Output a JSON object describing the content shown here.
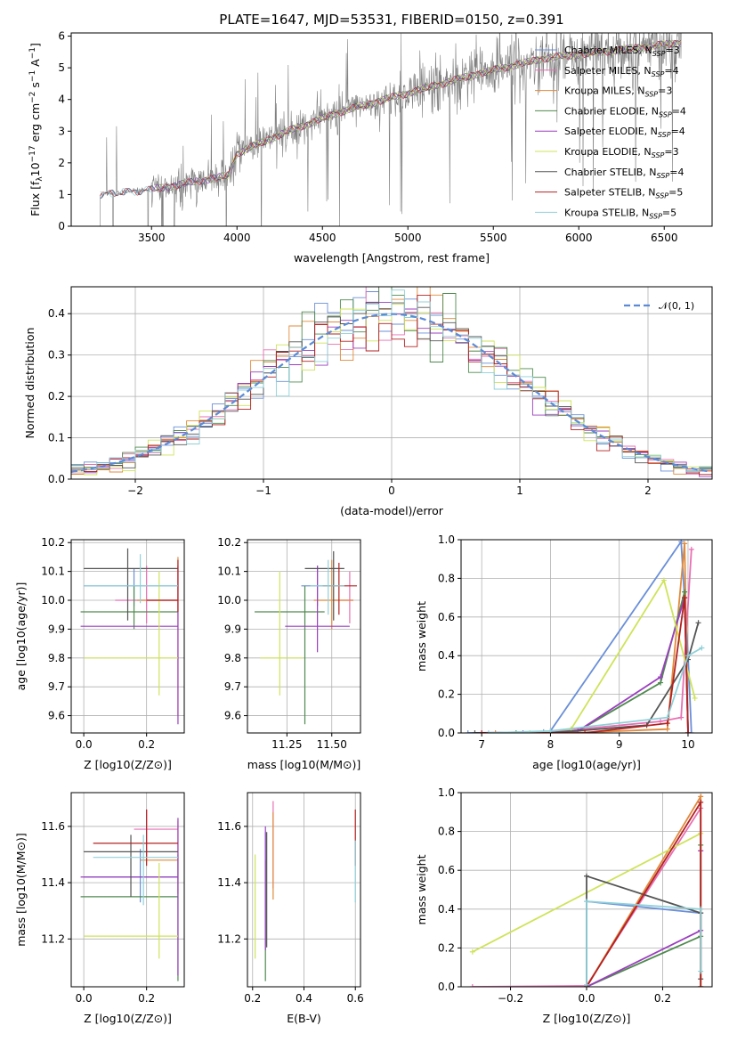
{
  "colors": {
    "ch_miles": "#6a8fd8",
    "sa_miles": "#e86fb3",
    "kr_miles": "#e08a3c",
    "ch_elodie": "#4f8a4f",
    "sa_elodie": "#9b3fbf",
    "kr_elodie": "#cfe35a",
    "ch_stelib": "#555555",
    "sa_stelib": "#b22222",
    "kr_stelib": "#8fd0d8",
    "spectrum": "#808080",
    "normal": "#5b8bd6"
  },
  "chart_data": [
    {
      "id": "spectrum",
      "type": "line",
      "title": "PLATE=1647, MJD=53531, FIBERID=0150, z=0.391",
      "xlabel": "wavelength [Angstrom, rest frame]",
      "ylabel_parts": [
        "Flux [f",
        "λ",
        "10",
        "−17",
        " erg cm",
        "−2",
        " s",
        "−1",
        " A",
        "−1",
        "]"
      ],
      "xlim": [
        3030,
        6780
      ],
      "ylim": [
        0,
        6.1
      ],
      "xticks": [
        "3500",
        "4000",
        "4500",
        "5000",
        "5500",
        "6000",
        "6500"
      ],
      "yticks": [
        "0",
        "1",
        "2",
        "3",
        "4",
        "5",
        "6"
      ],
      "grid": false,
      "legend": "top-right",
      "continuum": [
        [
          3200,
          1.0
        ],
        [
          3500,
          1.15
        ],
        [
          3700,
          1.35
        ],
        [
          3950,
          1.6
        ],
        [
          4000,
          2.3
        ],
        [
          4300,
          3.0
        ],
        [
          4600,
          3.6
        ],
        [
          5000,
          4.2
        ],
        [
          5400,
          4.8
        ],
        [
          5800,
          5.3
        ],
        [
          6300,
          5.6
        ],
        [
          6600,
          5.8
        ]
      ],
      "series": [
        {
          "key": "ch_miles",
          "label": "Chabrier MILES, N",
          "sub": "SSP",
          "suffix": "=3"
        },
        {
          "key": "sa_miles",
          "label": "Salpeter MILES, N",
          "sub": "SSP",
          "suffix": "=4"
        },
        {
          "key": "kr_miles",
          "label": "Kroupa MILES, N",
          "sub": "SSP",
          "suffix": "=3"
        },
        {
          "key": "ch_elodie",
          "label": "Chabrier ELODIE, N",
          "sub": "SSP",
          "suffix": "=4"
        },
        {
          "key": "sa_elodie",
          "label": "Salpeter ELODIE, N",
          "sub": "SSP",
          "suffix": "=4"
        },
        {
          "key": "kr_elodie",
          "label": "Kroupa ELODIE, N",
          "sub": "SSP",
          "suffix": "=3"
        },
        {
          "key": "ch_stelib",
          "label": "Chabrier STELIB, N",
          "sub": "SSP",
          "suffix": "=4"
        },
        {
          "key": "sa_stelib",
          "label": "Salpeter STELIB, N",
          "sub": "SSP",
          "suffix": "=5"
        },
        {
          "key": "kr_stelib",
          "label": "Kroupa STELIB, N",
          "sub": "SSP",
          "suffix": "=5"
        }
      ]
    },
    {
      "id": "residuals",
      "type": "step",
      "xlabel": "(data-model)/error",
      "ylabel": "Normed distribution",
      "xlim": [
        -2.5,
        2.5
      ],
      "ylim": [
        0,
        0.465
      ],
      "xticks": [
        "−2",
        "−1",
        "0",
        "1",
        "2"
      ],
      "yticks": [
        "0.0",
        "0.1",
        "0.2",
        "0.3",
        "0.4"
      ],
      "grid": true,
      "legend": "top-right",
      "normal_label": "𝒩(0, 1)",
      "bin_width": 0.1
    },
    {
      "id": "age_vs_Z",
      "type": "errorbar",
      "xlabel": "Z [log10(Z/Z⊙)]",
      "ylabel": "age  [log10(age/yr)]",
      "xlim": [
        -0.04,
        0.32
      ],
      "ylim": [
        9.54,
        10.21
      ],
      "xticks": [
        "0.0",
        "0.2"
      ],
      "yticks": [
        "9.6",
        "9.7",
        "9.8",
        "9.9",
        "10.0",
        "10.1",
        "10.2"
      ],
      "grid": true,
      "points": [
        {
          "key": "ch_miles",
          "x": 0.16,
          "xe": [
            0.0,
            0.3
          ],
          "y": 10.05,
          "ye": [
            9.98,
            10.11
          ]
        },
        {
          "key": "sa_miles",
          "x": 0.2,
          "xe": [
            0.1,
            0.3
          ],
          "y": 10.0,
          "ye": [
            9.92,
            10.12
          ]
        },
        {
          "key": "kr_miles",
          "x": 0.3,
          "xe": [
            0.17,
            0.3
          ],
          "y": 10.0,
          "ye": [
            9.6,
            10.15
          ]
        },
        {
          "key": "ch_elodie",
          "x": 0.16,
          "xe": [
            -0.01,
            0.3
          ],
          "y": 9.96,
          "ye": [
            9.9,
            10.05
          ]
        },
        {
          "key": "sa_elodie",
          "x": 0.3,
          "xe": [
            -0.01,
            0.3
          ],
          "y": 9.91,
          "ye": [
            9.57,
            10.12
          ]
        },
        {
          "key": "kr_elodie",
          "x": 0.24,
          "xe": [
            0.0,
            0.3
          ],
          "y": 9.8,
          "ye": [
            9.67,
            10.1
          ]
        },
        {
          "key": "ch_stelib",
          "x": 0.14,
          "xe": [
            0.0,
            0.3
          ],
          "y": 10.11,
          "ye": [
            9.93,
            10.18
          ]
        },
        {
          "key": "sa_stelib",
          "x": 0.3,
          "xe": [
            0.2,
            0.3
          ],
          "y": 10.0,
          "ye": [
            9.96,
            10.14
          ]
        },
        {
          "key": "kr_stelib",
          "x": 0.18,
          "xe": [
            0.0,
            0.3
          ],
          "y": 10.05,
          "ye": [
            9.99,
            10.16
          ]
        }
      ]
    },
    {
      "id": "age_vs_mass",
      "type": "errorbar",
      "xlabel": "mass [log10(M/M⊙)]",
      "ylabel": "",
      "xlim": [
        11.03,
        11.66
      ],
      "ylim": [
        9.54,
        10.21
      ],
      "xticks": [
        "11.25",
        "11.50"
      ],
      "yticks": [
        "9.6",
        "9.7",
        "9.8",
        "9.9",
        "10.0",
        "10.1",
        "10.2"
      ],
      "grid": true,
      "points": [
        {
          "key": "ch_miles",
          "x": 11.42,
          "xe": [
            11.33,
            11.51
          ],
          "y": 10.05,
          "ye": [
            9.98,
            10.12
          ]
        },
        {
          "key": "sa_miles",
          "x": 11.6,
          "xe": [
            11.5,
            11.62
          ],
          "y": 10.0,
          "ye": [
            9.92,
            10.1
          ]
        },
        {
          "key": "kr_miles",
          "x": 11.5,
          "xe": [
            11.4,
            11.62
          ],
          "y": 10.0,
          "ye": [
            9.9,
            10.14
          ]
        },
        {
          "key": "ch_elodie",
          "x": 11.35,
          "xe": [
            11.07,
            11.46
          ],
          "y": 9.96,
          "ye": [
            9.57,
            10.05
          ]
        },
        {
          "key": "sa_elodie",
          "x": 11.42,
          "xe": [
            11.24,
            11.6
          ],
          "y": 9.91,
          "ye": [
            9.82,
            10.12
          ]
        },
        {
          "key": "kr_elodie",
          "x": 11.21,
          "xe": [
            11.1,
            11.34
          ],
          "y": 9.8,
          "ye": [
            9.67,
            10.1
          ]
        },
        {
          "key": "ch_stelib",
          "x": 11.51,
          "xe": [
            11.35,
            11.57
          ],
          "y": 10.11,
          "ye": [
            9.93,
            10.17
          ]
        },
        {
          "key": "sa_stelib",
          "x": 11.54,
          "xe": [
            11.45,
            11.64
          ],
          "y": 10.05,
          "ye": [
            9.95,
            10.13
          ]
        },
        {
          "key": "kr_stelib",
          "x": 11.48,
          "xe": [
            11.38,
            11.57
          ],
          "y": 10.05,
          "ye": [
            9.95,
            10.14
          ]
        }
      ]
    },
    {
      "id": "massweight_vs_age",
      "type": "line",
      "xlabel": "age  [log10(age/yr)]",
      "ylabel": "mass weight",
      "xlim": [
        6.7,
        10.35
      ],
      "ylim": [
        0,
        1.0
      ],
      "xticks": [
        "7",
        "8",
        "9",
        "10"
      ],
      "yticks": [
        "0.0",
        "0.2",
        "0.4",
        "0.6",
        "0.8",
        "1.0"
      ],
      "grid": true,
      "series": [
        {
          "key": "ch_miles",
          "x": [
            6.8,
            7.9,
            8.0,
            9.9,
            10.0,
            10.05
          ],
          "y": [
            0.0,
            0.005,
            0.01,
            0.99,
            0.4,
            0.0
          ]
        },
        {
          "key": "sa_miles",
          "x": [
            7.0,
            8.0,
            9.6,
            9.9,
            10.05
          ],
          "y": [
            0.0,
            0.005,
            0.06,
            0.08,
            0.95
          ]
        },
        {
          "key": "kr_miles",
          "x": [
            7.2,
            8.3,
            9.7,
            9.95,
            10.0
          ],
          "y": [
            0.0,
            0.0,
            0.02,
            0.98,
            0.0
          ]
        },
        {
          "key": "ch_elodie",
          "x": [
            7.5,
            8.4,
            9.6,
            9.95,
            10.0
          ],
          "y": [
            0.0,
            0.01,
            0.26,
            0.73,
            0.0
          ]
        },
        {
          "key": "sa_elodie",
          "x": [
            7.6,
            8.4,
            9.6,
            9.95,
            10.0
          ],
          "y": [
            0.0,
            0.01,
            0.29,
            0.7,
            0.0
          ]
        },
        {
          "key": "kr_elodie",
          "x": [
            7.7,
            8.3,
            9.65,
            10.1
          ],
          "y": [
            0.0,
            0.02,
            0.79,
            0.18
          ]
        },
        {
          "key": "ch_stelib",
          "x": [
            6.9,
            8.0,
            9.4,
            10.0,
            10.15
          ],
          "y": [
            0.0,
            0.0,
            0.04,
            0.38,
            0.57
          ]
        },
        {
          "key": "sa_stelib",
          "x": [
            7.0,
            8.5,
            9.7,
            9.95,
            10.0
          ],
          "y": [
            0.0,
            0.0,
            0.05,
            0.7,
            0.0
          ]
        },
        {
          "key": "kr_stelib",
          "x": [
            7.1,
            8.0,
            9.7,
            10.0,
            10.2
          ],
          "y": [
            0.0,
            0.01,
            0.08,
            0.4,
            0.44
          ]
        }
      ]
    },
    {
      "id": "mass_vs_Z",
      "type": "errorbar",
      "xlabel": "Z [log10(Z/Z⊙)]",
      "ylabel": "mass [log10(M/M⊙)]",
      "xlim": [
        -0.04,
        0.32
      ],
      "ylim": [
        11.03,
        11.72
      ],
      "xticks": [
        "0.0",
        "0.2"
      ],
      "yticks": [
        "11.2",
        "11.4",
        "11.6"
      ],
      "grid": true,
      "points": [
        {
          "key": "ch_miles",
          "x": 0.18,
          "xe": [
            0.0,
            0.3
          ],
          "y": 11.42,
          "ye": [
            11.33,
            11.52
          ]
        },
        {
          "key": "sa_miles",
          "x": 0.2,
          "xe": [
            0.16,
            0.3
          ],
          "y": 11.59,
          "ye": [
            11.49,
            11.66
          ]
        },
        {
          "key": "kr_miles",
          "x": 0.3,
          "xe": [
            0.18,
            0.3
          ],
          "y": 11.48,
          "ye": [
            11.36,
            11.62
          ]
        },
        {
          "key": "ch_elodie",
          "x": 0.3,
          "xe": [
            -0.01,
            0.3
          ],
          "y": 11.35,
          "ye": [
            11.05,
            11.5
          ]
        },
        {
          "key": "sa_elodie",
          "x": 0.3,
          "xe": [
            -0.01,
            0.3
          ],
          "y": 11.42,
          "ye": [
            11.07,
            11.63
          ]
        },
        {
          "key": "kr_elodie",
          "x": 0.24,
          "xe": [
            0.0,
            0.3
          ],
          "y": 11.21,
          "ye": [
            11.13,
            11.47
          ]
        },
        {
          "key": "ch_stelib",
          "x": 0.15,
          "xe": [
            0.0,
            0.3
          ],
          "y": 11.51,
          "ye": [
            11.35,
            11.57
          ]
        },
        {
          "key": "sa_stelib",
          "x": 0.2,
          "xe": [
            0.03,
            0.3
          ],
          "y": 11.54,
          "ye": [
            11.46,
            11.66
          ]
        },
        {
          "key": "kr_stelib",
          "x": 0.19,
          "xe": [
            0.03,
            0.3
          ],
          "y": 11.49,
          "ye": [
            11.32,
            11.57
          ]
        }
      ]
    },
    {
      "id": "mass_vs_EBV",
      "type": "errorbar",
      "xlabel": "E(B-V)",
      "ylabel": "",
      "xlim": [
        0.18,
        0.62
      ],
      "ylim": [
        11.03,
        11.72
      ],
      "xticks": [
        "0.2",
        "0.4",
        "0.6"
      ],
      "yticks": [
        "11.2",
        "11.4",
        "11.6"
      ],
      "grid": true,
      "points": [
        {
          "key": "ch_miles",
          "x": 0.25,
          "xe": [
            0.25,
            0.25
          ],
          "y": 11.42,
          "ye": [
            11.18,
            11.58
          ]
        },
        {
          "key": "sa_miles",
          "x": 0.28,
          "xe": [
            0.28,
            0.28
          ],
          "y": 11.55,
          "ye": [
            11.38,
            11.69
          ]
        },
        {
          "key": "kr_miles",
          "x": 0.28,
          "xe": [
            0.28,
            0.28
          ],
          "y": 11.48,
          "ye": [
            11.34,
            11.65
          ]
        },
        {
          "key": "ch_elodie",
          "x": 0.25,
          "xe": [
            0.25,
            0.25
          ],
          "y": 11.35,
          "ye": [
            11.05,
            11.48
          ]
        },
        {
          "key": "sa_elodie",
          "x": 0.25,
          "xe": [
            0.25,
            0.25
          ],
          "y": 11.42,
          "ye": [
            11.16,
            11.6
          ]
        },
        {
          "key": "kr_elodie",
          "x": 0.21,
          "xe": [
            0.21,
            0.21
          ],
          "y": 11.21,
          "ye": [
            11.13,
            11.5
          ]
        },
        {
          "key": "ch_stelib",
          "x": 0.255,
          "xe": [
            0.255,
            0.255
          ],
          "y": 11.51,
          "ye": [
            11.17,
            11.58
          ]
        },
        {
          "key": "sa_stelib",
          "x": 0.6,
          "xe": [
            0.6,
            0.6
          ],
          "y": 11.54,
          "ye": [
            11.46,
            11.66
          ]
        },
        {
          "key": "kr_stelib",
          "x": 0.6,
          "xe": [
            0.6,
            0.6
          ],
          "y": 11.49,
          "ye": [
            11.33,
            11.55
          ]
        }
      ]
    },
    {
      "id": "massweight_vs_Z",
      "type": "line",
      "xlabel": "Z [log10(Z/Z⊙)]",
      "ylabel": "mass weight",
      "xlim": [
        -0.33,
        0.33
      ],
      "ylim": [
        0,
        1.0
      ],
      "xticks": [
        "−0.2",
        "0.0",
        "0.2"
      ],
      "yticks": [
        "0.0",
        "0.2",
        "0.4",
        "0.6",
        "0.8",
        "1.0"
      ],
      "grid": true,
      "series": [
        {
          "key": "ch_miles",
          "x": [
            0.0,
            0.0,
            0.3,
            0.3
          ],
          "y": [
            0.0,
            0.44,
            0.38,
            0.0
          ]
        },
        {
          "key": "sa_miles",
          "x": [
            -0.3,
            0.0,
            0.3,
            0.3
          ],
          "y": [
            0.0,
            0.005,
            0.92,
            0.7
          ]
        },
        {
          "key": "kr_miles",
          "x": [
            0.0,
            0.3,
            0.3
          ],
          "y": [
            0.0,
            0.98,
            0.0
          ]
        },
        {
          "key": "ch_elodie",
          "x": [
            0.0,
            0.3,
            0.3
          ],
          "y": [
            0.0,
            0.26,
            0.73
          ]
        },
        {
          "key": "sa_elodie",
          "x": [
            0.0,
            0.3,
            0.3
          ],
          "y": [
            0.0,
            0.29,
            0.7
          ]
        },
        {
          "key": "kr_elodie",
          "x": [
            -0.3,
            0.3,
            0.3
          ],
          "y": [
            0.18,
            0.79,
            0.0
          ]
        },
        {
          "key": "ch_stelib",
          "x": [
            0.0,
            0.0,
            0.3,
            0.3
          ],
          "y": [
            0.0,
            0.57,
            0.38,
            0.04
          ]
        },
        {
          "key": "sa_stelib",
          "x": [
            0.0,
            0.3,
            0.3
          ],
          "y": [
            0.0,
            0.95,
            0.0
          ]
        },
        {
          "key": "kr_stelib",
          "x": [
            0.0,
            0.0,
            0.3,
            0.3
          ],
          "y": [
            0.01,
            0.44,
            0.4,
            0.08
          ]
        }
      ]
    }
  ]
}
